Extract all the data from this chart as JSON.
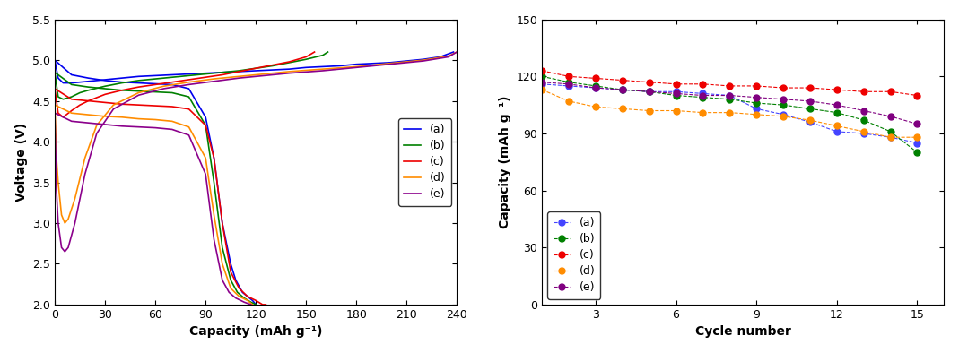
{
  "left_chart": {
    "xlabel": "Capacity (mAh g⁻¹)",
    "ylabel": "Voltage (V)",
    "xlim": [
      0,
      240
    ],
    "ylim": [
      2.0,
      5.5
    ],
    "xticks": [
      0,
      30,
      60,
      90,
      120,
      150,
      180,
      210,
      240
    ],
    "yticks": [
      2.0,
      2.5,
      3.0,
      3.5,
      4.0,
      4.5,
      5.0,
      5.5
    ],
    "series": [
      {
        "color": "#0000EE",
        "label": "(a)",
        "charge_x": [
          0,
          2,
          5,
          10,
          15,
          20,
          30,
          40,
          50,
          60,
          70,
          80,
          90,
          100,
          110,
          120,
          130,
          140,
          150,
          160,
          170,
          180,
          190,
          200,
          210,
          220,
          230,
          238
        ],
        "charge_y": [
          5.0,
          4.78,
          4.72,
          4.72,
          4.73,
          4.74,
          4.76,
          4.78,
          4.8,
          4.81,
          4.82,
          4.83,
          4.84,
          4.85,
          4.86,
          4.87,
          4.88,
          4.89,
          4.91,
          4.92,
          4.93,
          4.95,
          4.96,
          4.97,
          4.99,
          5.01,
          5.04,
          5.1
        ],
        "discharge_x": [
          0,
          10,
          20,
          30,
          40,
          50,
          60,
          70,
          80,
          90,
          95,
          100,
          105,
          108,
          112,
          115,
          118,
          120
        ],
        "discharge_y": [
          5.0,
          4.82,
          4.78,
          4.75,
          4.73,
          4.72,
          4.71,
          4.7,
          4.65,
          4.3,
          3.8,
          3.0,
          2.5,
          2.3,
          2.15,
          2.1,
          2.05,
          2.0
        ]
      },
      {
        "color": "#008000",
        "label": "(b)",
        "charge_x": [
          0,
          2,
          5,
          10,
          15,
          20,
          30,
          40,
          50,
          60,
          70,
          80,
          90,
          100,
          110,
          120,
          130,
          140,
          150,
          160,
          163
        ],
        "charge_y": [
          4.85,
          4.55,
          4.52,
          4.55,
          4.6,
          4.63,
          4.68,
          4.72,
          4.75,
          4.77,
          4.79,
          4.81,
          4.83,
          4.85,
          4.87,
          4.9,
          4.93,
          4.97,
          5.01,
          5.06,
          5.1
        ],
        "discharge_x": [
          0,
          10,
          20,
          30,
          40,
          50,
          60,
          70,
          80,
          90,
          95,
          100,
          105,
          109,
          113,
          117,
          120
        ],
        "discharge_y": [
          4.85,
          4.7,
          4.67,
          4.65,
          4.63,
          4.62,
          4.61,
          4.6,
          4.55,
          4.2,
          3.5,
          2.7,
          2.3,
          2.15,
          2.08,
          2.03,
          2.0
        ]
      },
      {
        "color": "#EE0000",
        "label": "(c)",
        "charge_x": [
          0,
          2,
          5,
          10,
          15,
          20,
          30,
          40,
          50,
          60,
          70,
          80,
          90,
          100,
          110,
          120,
          130,
          140,
          150,
          155
        ],
        "charge_y": [
          4.65,
          4.35,
          4.3,
          4.38,
          4.45,
          4.5,
          4.58,
          4.63,
          4.67,
          4.7,
          4.73,
          4.76,
          4.79,
          4.82,
          4.86,
          4.9,
          4.94,
          4.98,
          5.04,
          5.1
        ],
        "discharge_x": [
          0,
          10,
          20,
          30,
          40,
          50,
          60,
          70,
          80,
          90,
          95,
          100,
          105,
          110,
          115,
          120,
          124,
          126
        ],
        "discharge_y": [
          4.65,
          4.52,
          4.5,
          4.48,
          4.46,
          4.45,
          4.44,
          4.43,
          4.4,
          4.2,
          3.8,
          3.0,
          2.4,
          2.2,
          2.1,
          2.05,
          2.0,
          2.0
        ]
      },
      {
        "color": "#FF8C00",
        "label": "(d)",
        "charge_x": [
          0,
          1,
          2,
          4,
          6,
          8,
          12,
          18,
          25,
          35,
          50,
          65,
          80,
          95,
          110,
          125,
          140,
          160,
          180,
          200,
          220,
          235,
          240
        ],
        "charge_y": [
          4.45,
          3.8,
          3.5,
          3.1,
          3.0,
          3.05,
          3.3,
          3.8,
          4.2,
          4.45,
          4.6,
          4.68,
          4.73,
          4.77,
          4.8,
          4.83,
          4.86,
          4.89,
          4.92,
          4.96,
          5.0,
          5.05,
          5.1
        ],
        "discharge_x": [
          0,
          10,
          20,
          30,
          40,
          50,
          60,
          70,
          80,
          90,
          95,
          100,
          105,
          110,
          115,
          118
        ],
        "discharge_y": [
          4.45,
          4.35,
          4.33,
          4.31,
          4.3,
          4.28,
          4.27,
          4.25,
          4.18,
          3.8,
          3.1,
          2.5,
          2.2,
          2.1,
          2.05,
          2.0
        ]
      },
      {
        "color": "#8B008B",
        "label": "(e)",
        "charge_x": [
          0,
          1,
          2,
          4,
          6,
          8,
          12,
          18,
          25,
          35,
          50,
          65,
          80,
          95,
          110,
          125,
          140,
          160,
          180,
          200,
          220,
          235,
          240
        ],
        "charge_y": [
          4.35,
          3.4,
          3.0,
          2.7,
          2.65,
          2.7,
          3.0,
          3.6,
          4.1,
          4.4,
          4.57,
          4.65,
          4.7,
          4.74,
          4.78,
          4.81,
          4.84,
          4.87,
          4.91,
          4.95,
          4.99,
          5.04,
          5.1
        ],
        "discharge_x": [
          0,
          10,
          20,
          30,
          40,
          50,
          60,
          70,
          80,
          90,
          95,
          100,
          104,
          108,
          113,
          117
        ],
        "discharge_y": [
          4.35,
          4.25,
          4.23,
          4.21,
          4.19,
          4.18,
          4.17,
          4.15,
          4.08,
          3.6,
          2.8,
          2.3,
          2.15,
          2.08,
          2.03,
          2.0
        ]
      }
    ]
  },
  "right_chart": {
    "xlabel": "Cycle number",
    "ylabel": "Capacity (mAh g⁻¹)",
    "xlim": [
      1,
      16
    ],
    "ylim": [
      0,
      150
    ],
    "xticks": [
      3,
      6,
      9,
      12,
      15
    ],
    "yticks": [
      0,
      30,
      60,
      90,
      120,
      150
    ],
    "series": [
      {
        "color": "#4444FF",
        "label": "(a)",
        "cycles": [
          1,
          2,
          3,
          4,
          5,
          6,
          7,
          8,
          9,
          10,
          11,
          12,
          13,
          14,
          15
        ],
        "capacity": [
          116,
          115,
          114,
          113,
          112,
          112,
          111,
          110,
          103,
          100,
          96,
          91,
          90,
          88,
          85
        ]
      },
      {
        "color": "#008000",
        "label": "(b)",
        "cycles": [
          1,
          2,
          3,
          4,
          5,
          6,
          7,
          8,
          9,
          10,
          11,
          12,
          13,
          14,
          15
        ],
        "capacity": [
          120,
          117,
          115,
          113,
          112,
          110,
          109,
          108,
          106,
          105,
          103,
          101,
          97,
          91,
          80
        ]
      },
      {
        "color": "#EE0000",
        "label": "(c)",
        "cycles": [
          1,
          2,
          3,
          4,
          5,
          6,
          7,
          8,
          9,
          10,
          11,
          12,
          13,
          14,
          15
        ],
        "capacity": [
          123,
          120,
          119,
          118,
          117,
          116,
          116,
          115,
          115,
          114,
          114,
          113,
          112,
          112,
          110
        ]
      },
      {
        "color": "#FF8C00",
        "label": "(d)",
        "cycles": [
          1,
          2,
          3,
          4,
          5,
          6,
          7,
          8,
          9,
          10,
          11,
          12,
          13,
          14,
          15
        ],
        "capacity": [
          113,
          107,
          104,
          103,
          102,
          102,
          101,
          101,
          100,
          99,
          97,
          94,
          91,
          88,
          88
        ]
      },
      {
        "color": "#800080",
        "label": "(e)",
        "cycles": [
          1,
          2,
          3,
          4,
          5,
          6,
          7,
          8,
          9,
          10,
          11,
          12,
          13,
          14,
          15
        ],
        "capacity": [
          117,
          116,
          114,
          113,
          112,
          111,
          110,
          110,
          109,
          108,
          107,
          105,
          102,
          99,
          95
        ]
      }
    ]
  }
}
